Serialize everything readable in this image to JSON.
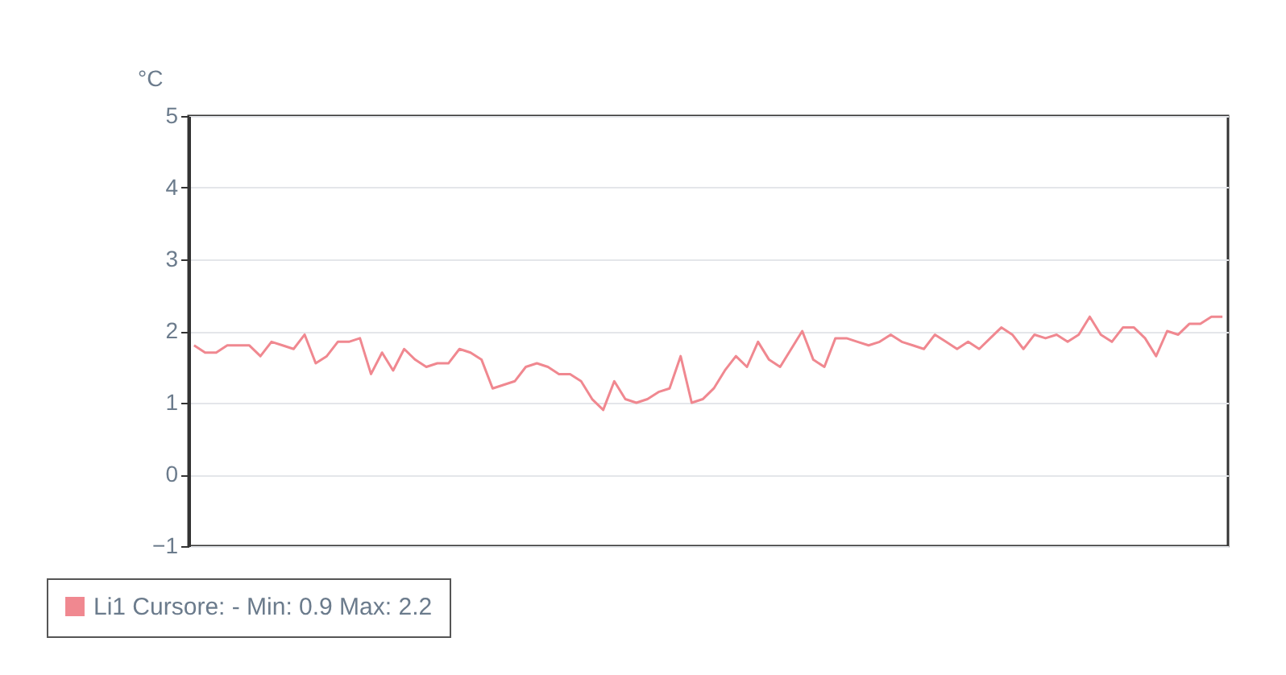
{
  "chart_data": {
    "type": "line",
    "ylabel": "°C",
    "ylim": [
      -1,
      5
    ],
    "yticks": [
      -1,
      0,
      1,
      2,
      3,
      4,
      5
    ],
    "grid": "y",
    "legend": "bottom",
    "marker": "none",
    "line_style": "solid",
    "categories": [
      null,
      null,
      null,
      null,
      null,
      null,
      null,
      null,
      null,
      null,
      null,
      null,
      null,
      null,
      null,
      null,
      null,
      null,
      null,
      null,
      null,
      null,
      null,
      null,
      null,
      null,
      null,
      null,
      null,
      null,
      null,
      null,
      null,
      null,
      null,
      null,
      null,
      null,
      null,
      null,
      null,
      null,
      null,
      null,
      null,
      null,
      null,
      null,
      null,
      null,
      null,
      null,
      null,
      null,
      null,
      null,
      null,
      null,
      null,
      null,
      null,
      null,
      null,
      null,
      null,
      null,
      null,
      null,
      null,
      null,
      null,
      null,
      null,
      null,
      null,
      null,
      null,
      null,
      null,
      null,
      null,
      null,
      null,
      null,
      null,
      null,
      null,
      null,
      null,
      null,
      null,
      null,
      null,
      null
    ],
    "series": [
      {
        "name": "Li1 Cursore: - Min: 0.9 Max: 2.2",
        "color": "#f08890",
        "values": [
          1.8,
          1.7,
          1.7,
          1.8,
          1.8,
          1.8,
          1.65,
          1.85,
          1.8,
          1.75,
          1.95,
          1.55,
          1.65,
          1.85,
          1.85,
          1.9,
          1.4,
          1.7,
          1.45,
          1.75,
          1.6,
          1.5,
          1.55,
          1.55,
          1.75,
          1.7,
          1.6,
          1.2,
          1.25,
          1.3,
          1.5,
          1.55,
          1.5,
          1.4,
          1.4,
          1.3,
          1.05,
          0.9,
          1.3,
          1.05,
          1.0,
          1.05,
          1.15,
          1.2,
          1.65,
          1.0,
          1.05,
          1.2,
          1.45,
          1.65,
          1.5,
          1.85,
          1.6,
          1.5,
          1.75,
          2.0,
          1.6,
          1.5,
          1.9,
          1.9,
          1.85,
          1.8,
          1.85,
          1.95,
          1.85,
          1.8,
          1.75,
          1.95,
          1.85,
          1.75,
          1.85,
          1.75,
          1.9,
          2.05,
          1.95,
          1.75,
          1.95,
          1.9,
          1.95,
          1.85,
          1.95,
          2.2,
          1.95,
          1.85,
          2.05,
          2.05,
          1.9,
          1.65,
          2.0,
          1.95,
          2.1,
          2.1,
          2.2,
          2.2
        ]
      }
    ]
  }
}
